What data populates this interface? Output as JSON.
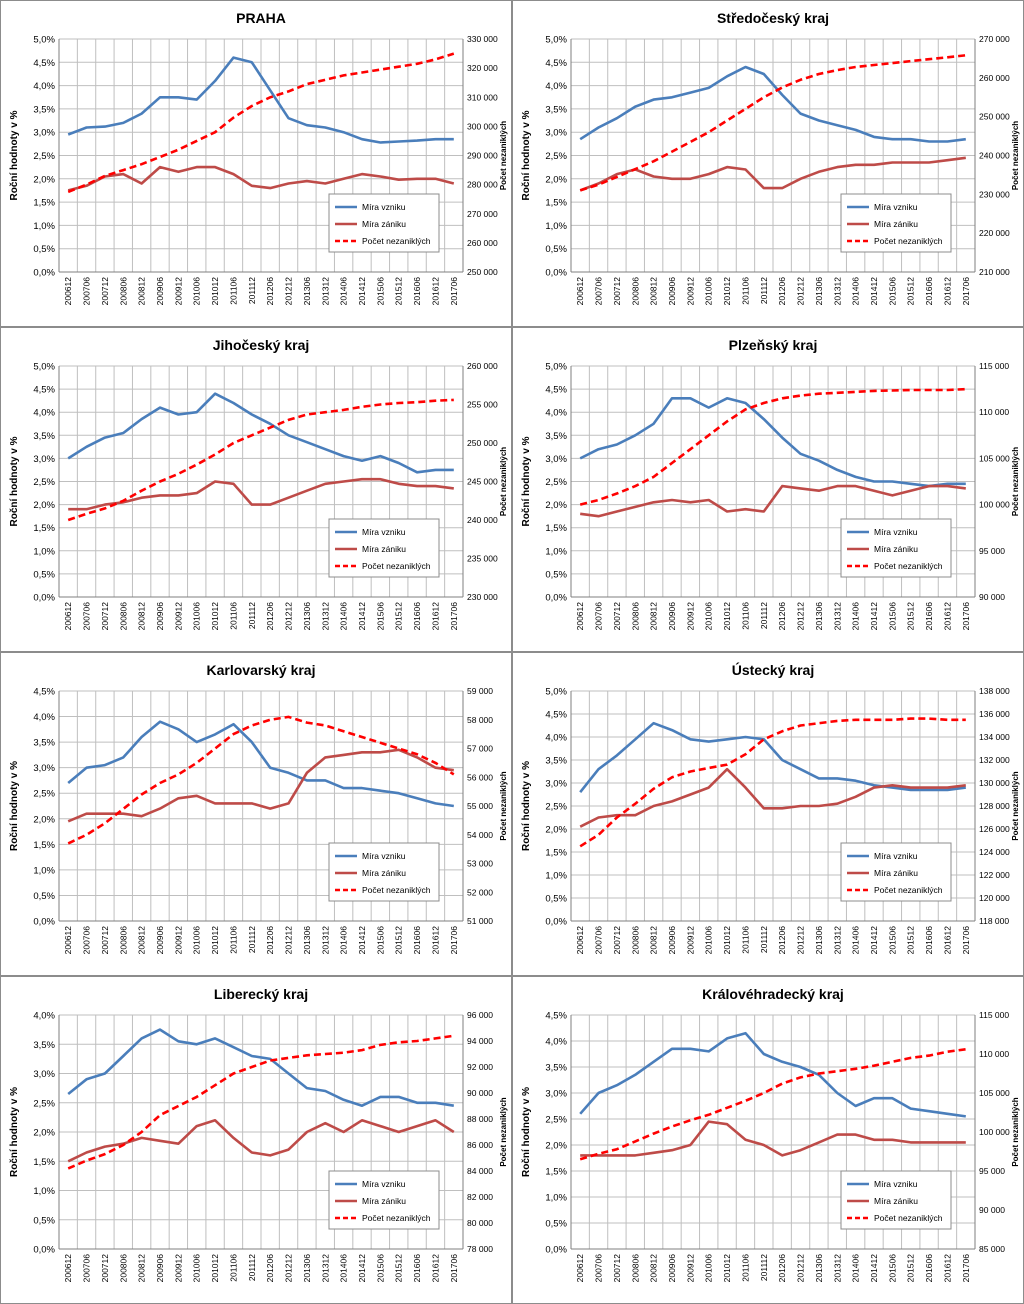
{
  "x_ticks": [
    "200612",
    "200706",
    "200712",
    "200806",
    "200812",
    "200906",
    "200912",
    "201006",
    "201012",
    "201106",
    "201112",
    "201206",
    "201212",
    "201306",
    "201312",
    "201406",
    "201412",
    "201506",
    "201512",
    "201606",
    "201612",
    "201706"
  ],
  "y_left_label": "Roční hodnoty v %",
  "y_right_label": "Počet nezaniklých",
  "legend": [
    "Míra vzniku",
    "Míra zániku",
    "Počet nezaniklých"
  ],
  "colors": {
    "vznik": "#4a7ebb",
    "zanik": "#be4b48",
    "pocet": "#ff0000",
    "grid": "#bfbfbf",
    "axis": "#7f7f7f"
  },
  "chart_data": [
    {
      "type": "line",
      "title": "PRAHA",
      "ylim_left": [
        0,
        5.0
      ],
      "ylim_right": [
        250000,
        330000
      ],
      "left_ticks": [
        "0,0%",
        "0,5%",
        "1,0%",
        "1,5%",
        "2,0%",
        "2,5%",
        "3,0%",
        "3,5%",
        "4,0%",
        "4,5%",
        "5,0%"
      ],
      "right_ticks": [
        "250 000",
        "260 000",
        "270 000",
        "280 000",
        "290 000",
        "300 000",
        "310 000",
        "320 000",
        "330 000"
      ],
      "legend_position": "lower-right",
      "series": [
        {
          "name": "Míra vzniku",
          "values": [
            2.95,
            3.1,
            3.12,
            3.2,
            3.4,
            3.75,
            3.75,
            3.7,
            4.1,
            4.6,
            4.5,
            3.9,
            3.3,
            3.15,
            3.1,
            3.0,
            2.85,
            2.78,
            2.8,
            2.82,
            2.85,
            2.85
          ]
        },
        {
          "name": "Míra zániku",
          "values": [
            1.75,
            1.85,
            2.05,
            2.1,
            1.9,
            2.25,
            2.15,
            2.25,
            2.25,
            2.1,
            1.85,
            1.8,
            1.9,
            1.95,
            1.9,
            2.0,
            2.1,
            2.05,
            1.98,
            2.0,
            2.0,
            1.9
          ]
        },
        {
          "name": "Počet nezaniklých",
          "values": [
            277500,
            280000,
            283000,
            285000,
            287000,
            289500,
            292000,
            295000,
            298000,
            303000,
            307000,
            310000,
            312000,
            314500,
            316000,
            317500,
            318500,
            319500,
            320500,
            321500,
            323000,
            325000
          ]
        }
      ]
    },
    {
      "type": "line",
      "title": "Středočeský kraj",
      "ylim_left": [
        0,
        5.0
      ],
      "ylim_right": [
        210000,
        270000
      ],
      "left_ticks": [
        "0,0%",
        "0,5%",
        "1,0%",
        "1,5%",
        "2,0%",
        "2,5%",
        "3,0%",
        "3,5%",
        "4,0%",
        "4,5%",
        "5,0%"
      ],
      "right_ticks": [
        "210 000",
        "220 000",
        "230 000",
        "240 000",
        "250 000",
        "260 000",
        "270 000"
      ],
      "legend_position": "lower-right",
      "series": [
        {
          "name": "Míra vzniku",
          "values": [
            2.85,
            3.1,
            3.3,
            3.55,
            3.7,
            3.75,
            3.85,
            3.95,
            4.2,
            4.4,
            4.25,
            3.8,
            3.4,
            3.25,
            3.15,
            3.05,
            2.9,
            2.85,
            2.85,
            2.8,
            2.8,
            2.85
          ]
        },
        {
          "name": "Míra zániku",
          "values": [
            1.75,
            1.9,
            2.1,
            2.2,
            2.05,
            2.0,
            2.0,
            2.1,
            2.25,
            2.2,
            1.8,
            1.8,
            2.0,
            2.15,
            2.25,
            2.3,
            2.3,
            2.35,
            2.35,
            2.35,
            2.4,
            2.45
          ]
        },
        {
          "name": "Počet nezaniklých",
          "values": [
            231000,
            232500,
            234500,
            236500,
            238500,
            241000,
            243500,
            246000,
            249000,
            252000,
            255000,
            257500,
            259500,
            261000,
            262000,
            262800,
            263300,
            263800,
            264300,
            264800,
            265300,
            265800
          ]
        }
      ]
    },
    {
      "type": "line",
      "title": "Jihočeský kraj",
      "ylim_left": [
        0,
        5.0
      ],
      "ylim_right": [
        230000,
        260000
      ],
      "left_ticks": [
        "0,0%",
        "0,5%",
        "1,0%",
        "1,5%",
        "2,0%",
        "2,5%",
        "3,0%",
        "3,5%",
        "4,0%",
        "4,5%",
        "5,0%"
      ],
      "right_ticks": [
        "230 000",
        "235 000",
        "240 000",
        "245 000",
        "250 000",
        "255 000",
        "260 000"
      ],
      "legend_position": "lower-right",
      "series": [
        {
          "name": "Míra vzniku",
          "values": [
            3.0,
            3.25,
            3.45,
            3.55,
            3.85,
            4.1,
            3.95,
            4.0,
            4.4,
            4.2,
            3.95,
            3.75,
            3.5,
            3.35,
            3.2,
            3.05,
            2.95,
            3.05,
            2.9,
            2.7,
            2.75,
            2.75
          ]
        },
        {
          "name": "Míra zániku",
          "values": [
            1.9,
            1.9,
            2.0,
            2.05,
            2.15,
            2.2,
            2.2,
            2.25,
            2.5,
            2.45,
            2.0,
            2.0,
            2.15,
            2.3,
            2.45,
            2.5,
            2.55,
            2.55,
            2.45,
            2.4,
            2.4,
            2.35
          ]
        },
        {
          "name": "Počet nezaniklých",
          "values": [
            240000,
            240800,
            241500,
            242500,
            243800,
            245000,
            246000,
            247200,
            248500,
            250000,
            251000,
            252000,
            253000,
            253700,
            254000,
            254300,
            254700,
            255000,
            255200,
            255300,
            255500,
            255600
          ]
        }
      ]
    },
    {
      "type": "line",
      "title": "Plzeňský kraj",
      "ylim_left": [
        0,
        5.0
      ],
      "ylim_right": [
        90000,
        115000
      ],
      "left_ticks": [
        "0,0%",
        "0,5%",
        "1,0%",
        "1,5%",
        "2,0%",
        "2,5%",
        "3,0%",
        "3,5%",
        "4,0%",
        "4,5%",
        "5,0%"
      ],
      "right_ticks": [
        "90 000",
        "95 000",
        "100 000",
        "105 000",
        "110 000",
        "115 000"
      ],
      "legend_position": "lower-right",
      "series": [
        {
          "name": "Míra vzniku",
          "values": [
            3.0,
            3.2,
            3.3,
            3.5,
            3.75,
            4.3,
            4.3,
            4.1,
            4.3,
            4.2,
            3.85,
            3.45,
            3.1,
            2.95,
            2.75,
            2.6,
            2.5,
            2.5,
            2.45,
            2.4,
            2.45,
            2.45
          ]
        },
        {
          "name": "Míra zániku",
          "values": [
            1.8,
            1.75,
            1.85,
            1.95,
            2.05,
            2.1,
            2.05,
            2.1,
            1.85,
            1.9,
            1.85,
            2.4,
            2.35,
            2.3,
            2.4,
            2.4,
            2.3,
            2.2,
            2.3,
            2.4,
            2.4,
            2.35
          ]
        },
        {
          "name": "Počet nezaniklých",
          "values": [
            100000,
            100500,
            101200,
            102000,
            103000,
            104500,
            106000,
            107500,
            109000,
            110300,
            111000,
            111500,
            111800,
            112000,
            112100,
            112200,
            112300,
            112350,
            112400,
            112400,
            112400,
            112500
          ]
        }
      ]
    },
    {
      "type": "line",
      "title": "Karlovarský kraj",
      "ylim_left": [
        0,
        4.5
      ],
      "ylim_right": [
        51000,
        59000
      ],
      "left_ticks": [
        "0,0%",
        "0,5%",
        "1,0%",
        "1,5%",
        "2,0%",
        "2,5%",
        "3,0%",
        "3,5%",
        "4,0%",
        "4,5%"
      ],
      "right_ticks": [
        "51 000",
        "52 000",
        "53 000",
        "54 000",
        "55 000",
        "56 000",
        "57 000",
        "58 000",
        "59 000"
      ],
      "legend_position": "lower-right",
      "series": [
        {
          "name": "Míra vzniku",
          "values": [
            2.7,
            3.0,
            3.05,
            3.2,
            3.6,
            3.9,
            3.75,
            3.5,
            3.65,
            3.85,
            3.5,
            3.0,
            2.9,
            2.75,
            2.75,
            2.6,
            2.6,
            2.55,
            2.5,
            2.4,
            2.3,
            2.25
          ]
        },
        {
          "name": "Míra zániku",
          "values": [
            1.95,
            2.1,
            2.1,
            2.1,
            2.05,
            2.2,
            2.4,
            2.45,
            2.3,
            2.3,
            2.3,
            2.2,
            2.3,
            2.9,
            3.2,
            3.25,
            3.3,
            3.3,
            3.35,
            3.2,
            3.0,
            2.95
          ]
        },
        {
          "name": "Počet nezaniklých",
          "values": [
            53700,
            54000,
            54400,
            54900,
            55400,
            55800,
            56100,
            56500,
            57000,
            57500,
            57800,
            58000,
            58100,
            57900,
            57800,
            57600,
            57400,
            57200,
            57000,
            56800,
            56500,
            56100
          ]
        }
      ]
    },
    {
      "type": "line",
      "title": "Ústecký kraj",
      "ylim_left": [
        0,
        5.0
      ],
      "ylim_right": [
        118000,
        138000
      ],
      "left_ticks": [
        "0,0%",
        "0,5%",
        "1,0%",
        "1,5%",
        "2,0%",
        "2,5%",
        "3,0%",
        "3,5%",
        "4,0%",
        "4,5%",
        "5,0%"
      ],
      "right_ticks": [
        "118 000",
        "120 000",
        "122 000",
        "124 000",
        "126 000",
        "128 000",
        "130 000",
        "132 000",
        "134 000",
        "136 000",
        "138 000"
      ],
      "legend_position": "lower-right",
      "series": [
        {
          "name": "Míra vzniku",
          "values": [
            2.8,
            3.3,
            3.6,
            3.95,
            4.3,
            4.15,
            3.95,
            3.9,
            3.95,
            4.0,
            3.95,
            3.5,
            3.3,
            3.1,
            3.1,
            3.05,
            2.95,
            2.9,
            2.85,
            2.85,
            2.85,
            2.9
          ]
        },
        {
          "name": "Míra zániku",
          "values": [
            2.05,
            2.25,
            2.3,
            2.3,
            2.5,
            2.6,
            2.75,
            2.9,
            3.3,
            2.9,
            2.45,
            2.45,
            2.5,
            2.5,
            2.55,
            2.7,
            2.9,
            2.95,
            2.9,
            2.9,
            2.9,
            2.95
          ]
        },
        {
          "name": "Počet nezaniklých",
          "values": [
            124500,
            125500,
            127000,
            128200,
            129500,
            130500,
            131000,
            131300,
            131600,
            132500,
            133800,
            134500,
            135000,
            135200,
            135400,
            135500,
            135500,
            135500,
            135600,
            135600,
            135500,
            135500
          ]
        }
      ]
    },
    {
      "type": "line",
      "title": "Liberecký kraj",
      "ylim_left": [
        0,
        4.0
      ],
      "ylim_right": [
        78000,
        96000
      ],
      "left_ticks": [
        "0,0%",
        "0,5%",
        "1,0%",
        "1,5%",
        "2,0%",
        "2,5%",
        "3,0%",
        "3,5%",
        "4,0%"
      ],
      "right_ticks": [
        "78 000",
        "80 000",
        "82 000",
        "84 000",
        "86 000",
        "88 000",
        "90 000",
        "92 000",
        "94 000",
        "96 000"
      ],
      "legend_position": "lower-right",
      "series": [
        {
          "name": "Míra vzniku",
          "values": [
            2.65,
            2.9,
            3.0,
            3.3,
            3.6,
            3.75,
            3.55,
            3.5,
            3.6,
            3.45,
            3.3,
            3.25,
            3.0,
            2.75,
            2.7,
            2.55,
            2.45,
            2.6,
            2.6,
            2.5,
            2.5,
            2.45
          ]
        },
        {
          "name": "Míra zániku",
          "values": [
            1.5,
            1.65,
            1.75,
            1.8,
            1.9,
            1.85,
            1.8,
            2.1,
            2.2,
            1.9,
            1.65,
            1.6,
            1.7,
            2.0,
            2.15,
            2.0,
            2.2,
            2.1,
            2.0,
            2.1,
            2.2,
            2.0
          ]
        },
        {
          "name": "Počet nezaniklých",
          "values": [
            84200,
            84800,
            85300,
            86000,
            87000,
            88300,
            89000,
            89700,
            90600,
            91500,
            92000,
            92500,
            92700,
            92900,
            93000,
            93100,
            93300,
            93700,
            93900,
            94000,
            94200,
            94400
          ]
        }
      ]
    },
    {
      "type": "line",
      "title": "Královéhradecký kraj",
      "ylim_left": [
        0,
        4.5
      ],
      "ylim_right": [
        85000,
        115000
      ],
      "left_ticks": [
        "0,0%",
        "0,5%",
        "1,0%",
        "1,5%",
        "2,0%",
        "2,5%",
        "3,0%",
        "3,5%",
        "4,0%",
        "4,5%"
      ],
      "right_ticks": [
        "85 000",
        "90 000",
        "95 000",
        "100 000",
        "105 000",
        "110 000",
        "115 000"
      ],
      "legend_position": "lower-right",
      "series": [
        {
          "name": "Míra vzniku",
          "values": [
            2.6,
            3.0,
            3.15,
            3.35,
            3.6,
            3.85,
            3.85,
            3.8,
            4.05,
            4.15,
            3.75,
            3.6,
            3.5,
            3.35,
            3.0,
            2.75,
            2.9,
            2.9,
            2.7,
            2.65,
            2.6,
            2.55
          ]
        },
        {
          "name": "Míra zániku",
          "values": [
            1.8,
            1.8,
            1.8,
            1.8,
            1.85,
            1.9,
            2.0,
            2.45,
            2.4,
            2.1,
            2.0,
            1.8,
            1.9,
            2.05,
            2.2,
            2.2,
            2.1,
            2.1,
            2.05,
            2.05,
            2.05,
            2.05
          ]
        },
        {
          "name": "Počet nezaniklých",
          "values": [
            96500,
            97200,
            97800,
            98800,
            99800,
            100700,
            101500,
            102200,
            103100,
            104000,
            105000,
            106200,
            107000,
            107500,
            107800,
            108100,
            108500,
            109000,
            109500,
            109800,
            110300,
            110600
          ]
        }
      ]
    }
  ]
}
